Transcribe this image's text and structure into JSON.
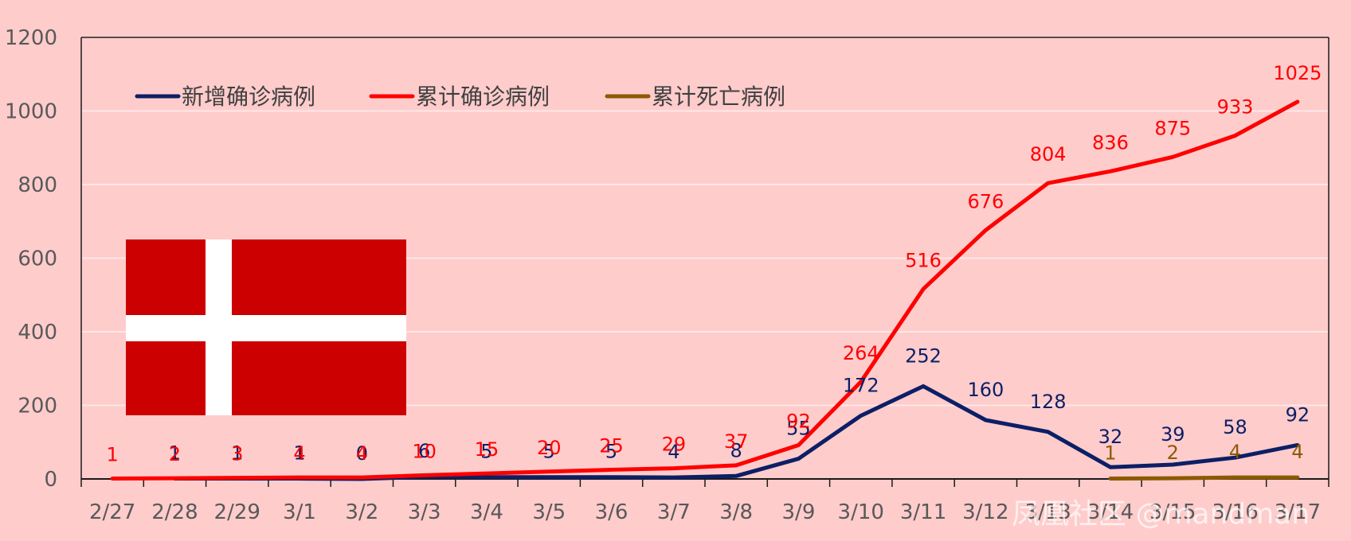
{
  "chart_data": {
    "type": "line",
    "categories": [
      "2/27",
      "2/28",
      "2/29",
      "3/1",
      "3/2",
      "3/3",
      "3/4",
      "3/5",
      "3/6",
      "3/7",
      "3/8",
      "3/9",
      "3/10",
      "3/11",
      "3/12",
      "3/13",
      "3/14",
      "3/15",
      "3/16",
      "3/17"
    ],
    "series": [
      {
        "name": "新增确诊病例",
        "color": "#0c1f66",
        "values": [
          null,
          1,
          1,
          1,
          0,
          6,
          5,
          5,
          5,
          4,
          8,
          55,
          172,
          252,
          160,
          128,
          32,
          39,
          58,
          92
        ]
      },
      {
        "name": "累计确诊病例",
        "color": "#ff0000",
        "values": [
          1,
          2,
          3,
          4,
          4,
          10,
          15,
          20,
          25,
          29,
          37,
          92,
          264,
          516,
          676,
          804,
          836,
          875,
          933,
          1025
        ]
      },
      {
        "name": "累计死亡病例",
        "color": "#8b5a00",
        "values": [
          null,
          null,
          null,
          null,
          null,
          null,
          null,
          null,
          null,
          null,
          null,
          null,
          null,
          null,
          null,
          null,
          1,
          2,
          4,
          4
        ]
      }
    ],
    "yticks": [
      0,
      200,
      400,
      600,
      800,
      1000,
      1200
    ],
    "ylim": [
      0,
      1200
    ],
    "grid": true,
    "legend": "top-left"
  },
  "flag": {
    "name": "Denmark",
    "red": "#cc0000",
    "white": "#ffffff"
  },
  "watermark": "凤凰社区 @mandman"
}
